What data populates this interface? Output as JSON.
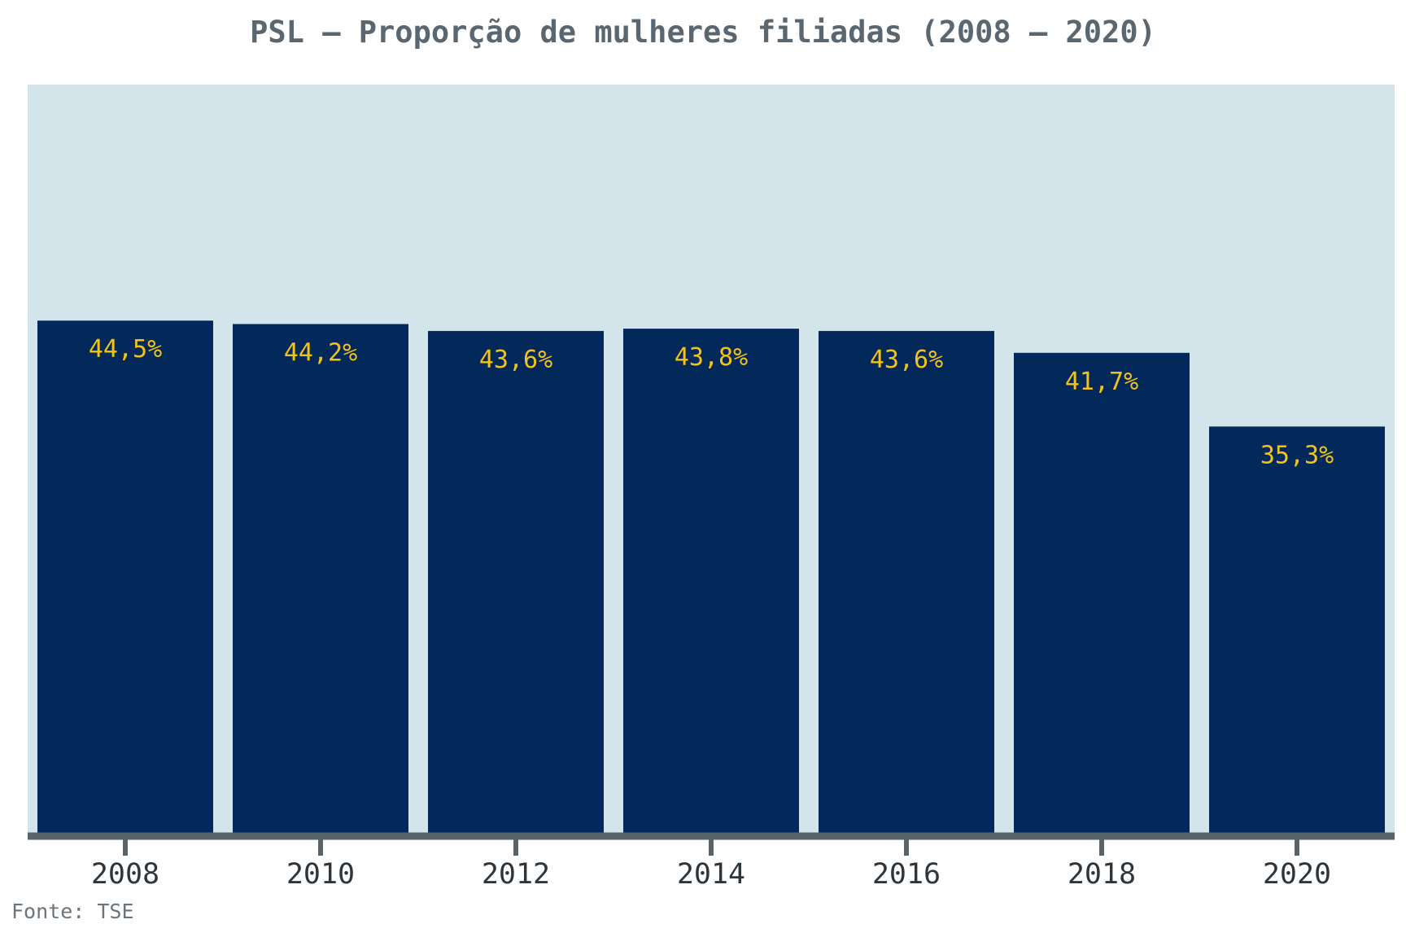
{
  "chart_data": {
    "type": "bar",
    "title": "PSL – Proporção de mulheres filiadas (2008 – 2020)",
    "categories": [
      "2008",
      "2010",
      "2012",
      "2014",
      "2016",
      "2018",
      "2020"
    ],
    "values": [
      44.5,
      44.2,
      43.6,
      43.8,
      43.6,
      41.7,
      35.3
    ],
    "value_labels": [
      "44,5%",
      "44,2%",
      "43,6%",
      "43,8%",
      "43,6%",
      "41,7%",
      "35,3%"
    ],
    "xlabel": "",
    "ylabel": "",
    "ylim": [
      0,
      65
    ],
    "grid": false,
    "legend": "none",
    "source": "Fonte: TSE",
    "colors": {
      "bar": "#03295b",
      "label": "#f2c318",
      "plot_background": "#d4e4eb",
      "axis": "#57636b",
      "tick_text": "#2f363b"
    }
  }
}
